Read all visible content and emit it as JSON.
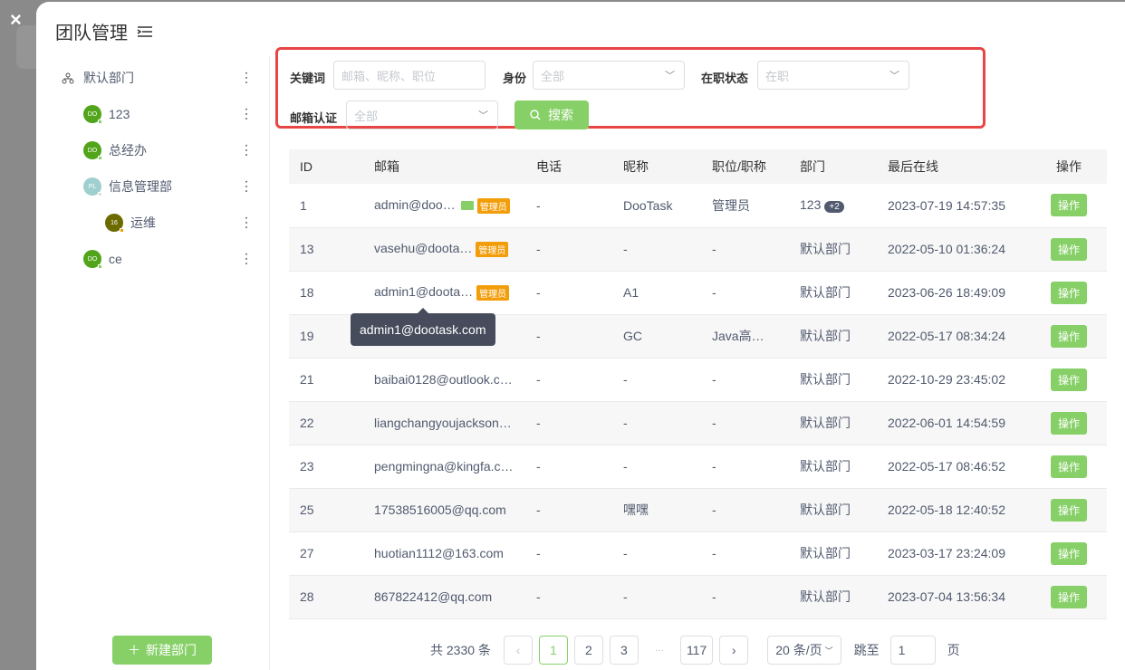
{
  "close_icon": "×",
  "title": "团队管理",
  "departments": [
    {
      "name": "默认部门",
      "icon": "org-tree-icon"
    },
    {
      "name": "123",
      "avatar": "DO",
      "color": "#52a41a",
      "status": "#87d068"
    },
    {
      "name": "总经办",
      "avatar": "DO",
      "color": "#52a41a",
      "status": "#87d068"
    },
    {
      "name": "信息管理部",
      "avatar": "PL",
      "color": "#9fd0cf",
      "status": "#ddd"
    },
    {
      "name": "运维",
      "avatar": "16",
      "color": "#6b6b00",
      "status": "#f29d0a"
    },
    {
      "name": "ce",
      "avatar": "DO",
      "color": "#52a41a",
      "status": "#87d068"
    }
  ],
  "new_dept": "新建部门",
  "filters": {
    "keyword_label": "关键词",
    "keyword_placeholder": "邮箱、昵称、职位",
    "role_label": "身份",
    "role_value": "全部",
    "status_label": "在职状态",
    "status_value": "在职",
    "email_label": "邮箱认证",
    "email_value": "全部",
    "search": "搜索"
  },
  "table": {
    "headers": [
      "ID",
      "邮箱",
      "电话",
      "昵称",
      "职位/职称",
      "部门",
      "最后在线",
      "操作"
    ],
    "rows": [
      {
        "id": "1",
        "email": "admin@doo…",
        "mail": true,
        "admin": "管理员",
        "phone": "-",
        "nick": "DooTask",
        "pos": "管理员",
        "dept": "123",
        "extra": "+2",
        "last": "2023-07-19 14:57:35",
        "op": "操作"
      },
      {
        "id": "13",
        "email": "vasehu@doota…",
        "admin": "管理员",
        "phone": "-",
        "nick": "-",
        "pos": "-",
        "dept": "默认部门",
        "last": "2022-05-10 01:36:24",
        "op": "操作"
      },
      {
        "id": "18",
        "email": "admin1@doota…",
        "admin": "管理员",
        "phone": "-",
        "nick": "A1",
        "pos": "-",
        "dept": "默认部门",
        "last": "2023-06-26 18:49:09",
        "op": "操作"
      },
      {
        "id": "19",
        "email": "",
        "phone": "-",
        "nick": "GC",
        "pos": "Java高…",
        "dept": "默认部门",
        "last": "2022-05-17 08:34:24",
        "op": "操作"
      },
      {
        "id": "21",
        "email": "baibai0128@outlook.c…",
        "phone": "-",
        "nick": "-",
        "pos": "-",
        "dept": "默认部门",
        "last": "2022-10-29 23:45:02",
        "op": "操作"
      },
      {
        "id": "22",
        "email": "liangchangyoujackson…",
        "phone": "-",
        "nick": "-",
        "pos": "-",
        "dept": "默认部门",
        "last": "2022-06-01 14:54:59",
        "op": "操作"
      },
      {
        "id": "23",
        "email": "pengmingna@kingfa.c…",
        "phone": "-",
        "nick": "-",
        "pos": "-",
        "dept": "默认部门",
        "last": "2022-05-17 08:46:52",
        "op": "操作"
      },
      {
        "id": "25",
        "email": "17538516005@qq.com",
        "phone": "-",
        "nick": "嘿嘿",
        "pos": "-",
        "dept": "默认部门",
        "last": "2022-05-18 12:40:52",
        "op": "操作"
      },
      {
        "id": "27",
        "email": "huotian1112@163.com",
        "phone": "-",
        "nick": "-",
        "pos": "-",
        "dept": "默认部门",
        "last": "2023-03-17 23:24:09",
        "op": "操作"
      },
      {
        "id": "28",
        "email": "867822412@qq.com",
        "phone": "-",
        "nick": "-",
        "pos": "-",
        "dept": "默认部门",
        "last": "2023-07-04 13:56:34",
        "op": "操作"
      }
    ]
  },
  "tooltip": "admin1@dootask.com",
  "pagination": {
    "total": "共 2330 条",
    "pages": [
      "1",
      "2",
      "3"
    ],
    "ellipsis": "···",
    "last": "117",
    "current": "1",
    "page_size": "20 条/页",
    "jump_label": "跳至",
    "jump_value": "1",
    "page_unit": "页"
  }
}
